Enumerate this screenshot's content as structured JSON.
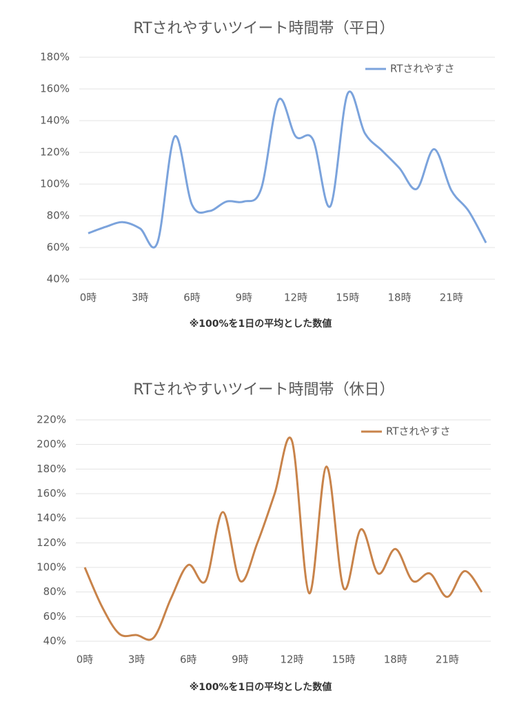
{
  "chart_data": [
    {
      "type": "line",
      "title": "RTされやすいツイート時間帯（平日）",
      "note": "※100%を1日の平均とした数値",
      "categories": [
        "0時",
        null,
        null,
        "3時",
        null,
        null,
        "6時",
        null,
        null,
        "9時",
        null,
        null,
        "12時",
        null,
        null,
        "15時",
        null,
        null,
        "18時",
        null,
        null,
        "21時",
        null,
        null
      ],
      "series": [
        {
          "name": "RTされやすさ",
          "color": "#7ba3dc",
          "values": [
            69,
            73,
            76,
            72,
            63,
            130,
            87,
            83,
            89,
            89,
            97,
            153,
            130,
            128,
            86,
            157,
            132,
            121,
            110,
            97,
            122,
            96,
            83,
            63
          ]
        }
      ],
      "ylim": [
        40,
        180
      ],
      "yticks": [
        {
          "value": 40,
          "label": "40%"
        },
        {
          "value": 60,
          "label": "60%"
        },
        {
          "value": 80,
          "label": "80%"
        },
        {
          "value": 100,
          "label": "100%"
        },
        {
          "value": 120,
          "label": "120%"
        },
        {
          "value": 140,
          "label": "140%"
        },
        {
          "value": 160,
          "label": "160%"
        },
        {
          "value": 180,
          "label": "180%"
        }
      ],
      "grid": true,
      "legend": "top-right"
    },
    {
      "type": "line",
      "title": "RTされやすいツイート時間帯（休日）",
      "note": "※100%を1日の平均とした数値",
      "categories": [
        "0時",
        null,
        null,
        "3時",
        null,
        null,
        "6時",
        null,
        null,
        "9時",
        null,
        null,
        "12時",
        null,
        null,
        "15時",
        null,
        null,
        "18時",
        null,
        null,
        "21時",
        null,
        null
      ],
      "series": [
        {
          "name": "RTされやすさ",
          "color": "#c8834a",
          "values": [
            100,
            68,
            46,
            45,
            43,
            75,
            102,
            89,
            145,
            89,
            120,
            160,
            203,
            79,
            182,
            83,
            131,
            95,
            115,
            89,
            95,
            76,
            97,
            80
          ]
        }
      ],
      "ylim": [
        40,
        220
      ],
      "yticks": [
        {
          "value": 40,
          "label": "40%"
        },
        {
          "value": 60,
          "label": "60%"
        },
        {
          "value": 80,
          "label": "80%"
        },
        {
          "value": 100,
          "label": "100%"
        },
        {
          "value": 120,
          "label": "120%"
        },
        {
          "value": 140,
          "label": "140%"
        },
        {
          "value": 160,
          "label": "160%"
        },
        {
          "value": 180,
          "label": "180%"
        },
        {
          "value": 200,
          "label": "200%"
        },
        {
          "value": 220,
          "label": "220%"
        }
      ],
      "grid": true,
      "legend": "top-right"
    }
  ]
}
